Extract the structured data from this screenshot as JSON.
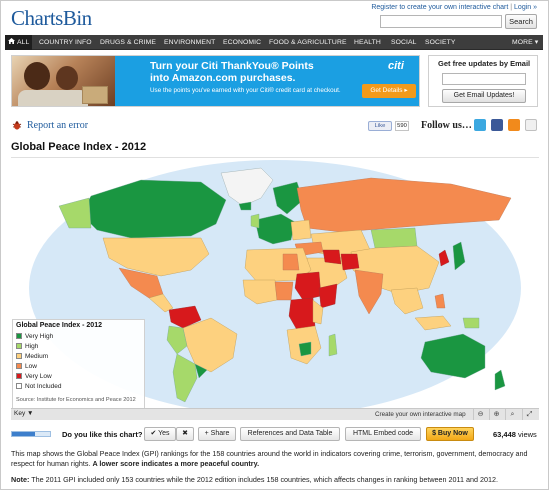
{
  "header": {
    "logo": "ChartsBin",
    "register_link": "Register to create your own interactive chart",
    "separator": "|",
    "login_link": "Login »",
    "search_placeholder": "",
    "search_button": "Search"
  },
  "nav": {
    "items": [
      "ALL",
      "COUNTRY INFO",
      "DRUGS & CRIME",
      "ENVIRONMENT",
      "ECONOMIC",
      "FOOD & AGRICULTURE",
      "HEALTH",
      "SOCIAL",
      "SOCIETY",
      "MORE ▾"
    ]
  },
  "ad": {
    "headline_1": "Turn your Citi ThankYou® Points",
    "headline_2": "into Amazon.com purchases.",
    "subtext": "Use the points you've earned with your Citi® credit card at checkout.",
    "brand": "citi",
    "cta": "Get Details ▸"
  },
  "updates": {
    "title": "Get free updates by Email",
    "button": "Get Email Updates!"
  },
  "actions_top": {
    "report": "Report an error",
    "fb_like": "Like",
    "fb_count": "590",
    "follow": "Follow us…"
  },
  "chart": {
    "title": "Global Peace Index - 2012",
    "legend_title": "Global Peace Index - 2012",
    "legend": [
      {
        "label": "Very High",
        "color": "#1a9641"
      },
      {
        "label": "High",
        "color": "#a6d96a"
      },
      {
        "label": "Medium",
        "color": "#fdd17f"
      },
      {
        "label": "Low",
        "color": "#f48a4f"
      },
      {
        "label": "Very Low",
        "color": "#d7191c"
      },
      {
        "label": "Not Included",
        "color": "#ffffff"
      }
    ],
    "source": "Source: Institute for Economics and Peace 2012",
    "key_label": "Key ▼",
    "create_map": "Create your own interactive map"
  },
  "colors": {
    "ocean": "#d6e8f7",
    "very_high": "#1a9641",
    "high": "#a6d96a",
    "medium": "#fdd17f",
    "low": "#f48a4f",
    "very_low": "#d7191c",
    "not_included": "#f4f4f4"
  },
  "action_bar": {
    "like_question": "Do you like this chart?",
    "yes": "✔ Yes",
    "no": "✖",
    "share": "+ Share",
    "refs": "References and Data Table",
    "embed": "HTML Embed code",
    "buy": "$ Buy Now",
    "views_count": "63,448",
    "views_label": "views",
    "rating_fraction": 0.6
  },
  "description": {
    "text": "This map shows the Global Peace Index (GPI) rankings for the 158 countries around the world in indicators covering crime, terrorism, government, democracy and respect for human rights. ",
    "bold": "A lower score indicates a more peaceful country."
  },
  "note": {
    "label": "Note:",
    "text": " The 2011 GPI included only 153 countries while the 2012 edition includes 158 countries, which affects changes in ranking between 2011 and 2012."
  }
}
